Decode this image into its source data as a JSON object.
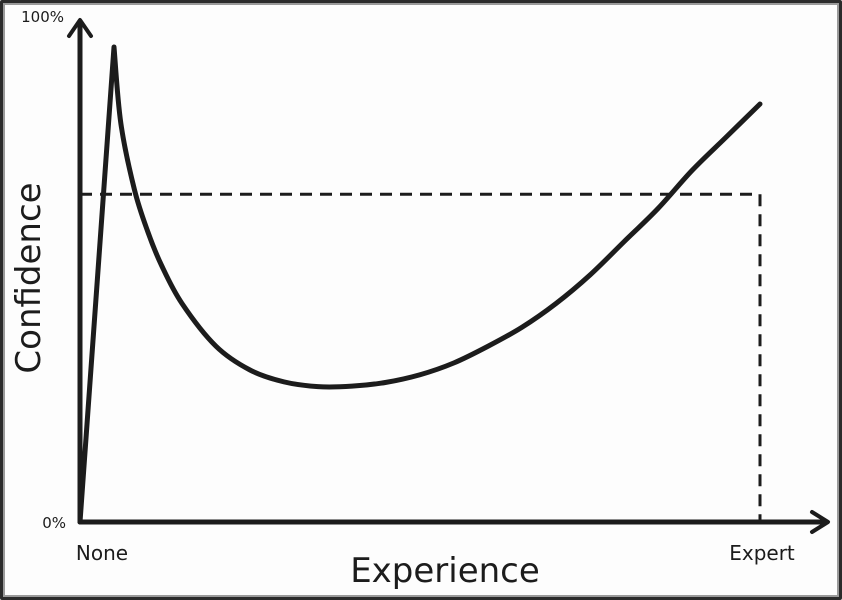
{
  "chart_data": {
    "type": "line",
    "xlabel": "Experience",
    "ylabel": "Confidence",
    "x_tick_labels": [
      "None",
      "Expert"
    ],
    "y_tick_labels": [
      "0%",
      "100%"
    ],
    "xlim": [
      0,
      100
    ],
    "ylim": [
      0,
      100
    ],
    "grid": false,
    "series": [
      {
        "values": [
          {
            "x": 0,
            "y": 0
          },
          {
            "x": 5,
            "y": 100
          },
          {
            "x": 6,
            "y": 84
          },
          {
            "x": 8,
            "y": 70
          },
          {
            "x": 10,
            "y": 61
          },
          {
            "x": 12,
            "y": 54
          },
          {
            "x": 15,
            "y": 46
          },
          {
            "x": 20,
            "y": 37
          },
          {
            "x": 25,
            "y": 32
          },
          {
            "x": 30,
            "y": 29.5
          },
          {
            "x": 35,
            "y": 28.5
          },
          {
            "x": 40,
            "y": 28.6
          },
          {
            "x": 45,
            "y": 29.4
          },
          {
            "x": 50,
            "y": 31
          },
          {
            "x": 55,
            "y": 33.5
          },
          {
            "x": 60,
            "y": 37
          },
          {
            "x": 65,
            "y": 41
          },
          {
            "x": 70,
            "y": 46
          },
          {
            "x": 75,
            "y": 52
          },
          {
            "x": 80,
            "y": 59
          },
          {
            "x": 85,
            "y": 66
          },
          {
            "x": 90,
            "y": 74
          },
          {
            "x": 95,
            "y": 81
          },
          {
            "x": 100,
            "y": 88
          }
        ]
      }
    ],
    "reference_lines": {
      "horizontal_y": 69,
      "vertical_x": 100
    }
  },
  "colors": {
    "ink": "#1c1c1c",
    "background": "#fdfdfd"
  }
}
